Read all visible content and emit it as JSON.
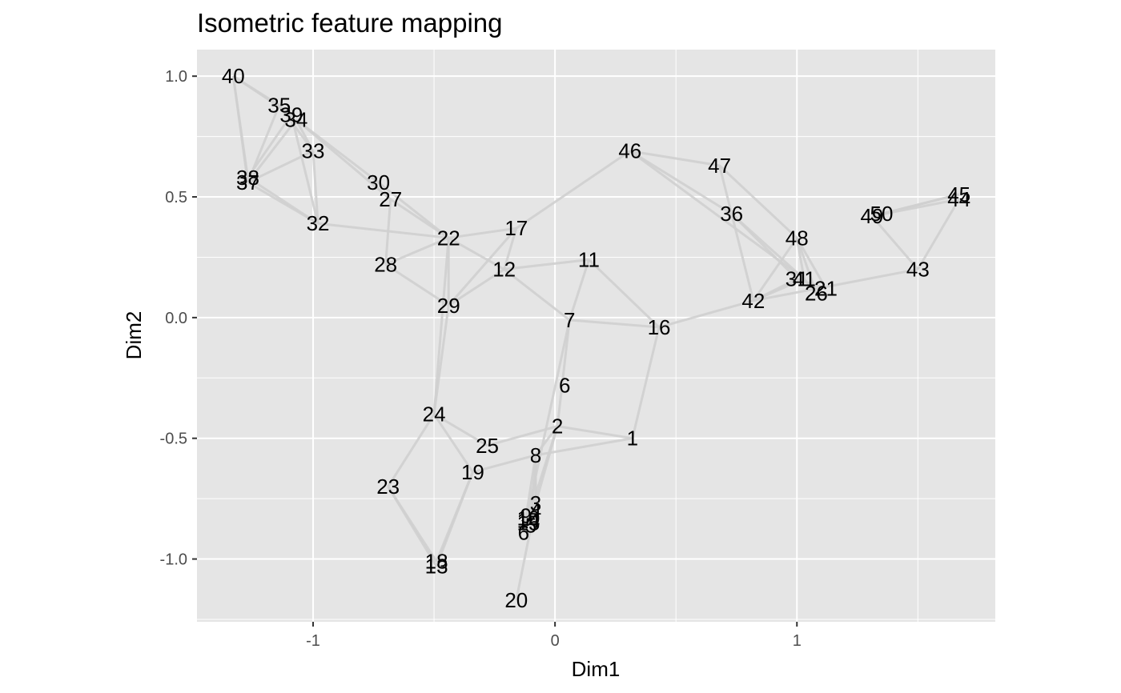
{
  "chart_data": {
    "type": "scatter",
    "title": "Isometric feature mapping",
    "xlabel": "Dim1",
    "ylabel": "Dim2",
    "xlim": [
      -1.48,
      1.82
    ],
    "ylim": [
      -1.26,
      1.11
    ],
    "x_ticks": [
      -1,
      0,
      1
    ],
    "x_tick_labels": [
      "-1",
      "0",
      "1"
    ],
    "y_ticks": [
      1.0,
      0.5,
      0.0,
      -0.5,
      -1.0
    ],
    "y_tick_labels": [
      "1.0",
      "0.5",
      "0.0",
      "-0.5",
      "-1.0"
    ],
    "grid": true,
    "background": "#e5e5e5",
    "grid_color": "#ffffff",
    "edge_color": "#cfcfcf",
    "points": [
      {
        "label": "1",
        "x": 0.32,
        "y": -0.5
      },
      {
        "label": "2",
        "x": 0.01,
        "y": -0.45
      },
      {
        "label": "3",
        "x": -0.08,
        "y": -0.77
      },
      {
        "label": "4",
        "x": -0.08,
        "y": -0.8
      },
      {
        "label": "5",
        "x": -0.1,
        "y": -0.86
      },
      {
        "label": "6",
        "x": -0.13,
        "y": -0.89
      },
      {
        "label": "6",
        "x": 0.04,
        "y": -0.28
      },
      {
        "label": "7",
        "x": 0.06,
        "y": -0.01
      },
      {
        "label": "8",
        "x": -0.08,
        "y": -0.57
      },
      {
        "label": "9",
        "x": -0.12,
        "y": -0.82
      },
      {
        "label": "10",
        "x": -0.11,
        "y": -0.83
      },
      {
        "label": "11",
        "x": 0.14,
        "y": 0.24
      },
      {
        "label": "12",
        "x": -0.21,
        "y": 0.2
      },
      {
        "label": "13",
        "x": -0.49,
        "y": -1.03
      },
      {
        "label": "14",
        "x": -0.11,
        "y": -0.84
      },
      {
        "label": "15",
        "x": -0.11,
        "y": -0.85
      },
      {
        "label": "16",
        "x": 0.43,
        "y": -0.04
      },
      {
        "label": "17",
        "x": -0.16,
        "y": 0.37
      },
      {
        "label": "18",
        "x": -0.49,
        "y": -1.01
      },
      {
        "label": "19",
        "x": -0.34,
        "y": -0.64
      },
      {
        "label": "20",
        "x": -0.16,
        "y": -1.17
      },
      {
        "label": "21",
        "x": 1.12,
        "y": 0.12
      },
      {
        "label": "22",
        "x": -0.44,
        "y": 0.33
      },
      {
        "label": "23",
        "x": -0.69,
        "y": -0.7
      },
      {
        "label": "24",
        "x": -0.5,
        "y": -0.4
      },
      {
        "label": "25",
        "x": -0.28,
        "y": -0.53
      },
      {
        "label": "26",
        "x": 1.08,
        "y": 0.1
      },
      {
        "label": "27",
        "x": -0.68,
        "y": 0.49
      },
      {
        "label": "28",
        "x": -0.7,
        "y": 0.22
      },
      {
        "label": "29",
        "x": -0.44,
        "y": 0.05
      },
      {
        "label": "30",
        "x": -0.73,
        "y": 0.56
      },
      {
        "label": "31",
        "x": 1.0,
        "y": 0.16
      },
      {
        "label": "32",
        "x": -0.98,
        "y": 0.39
      },
      {
        "label": "33",
        "x": -1.0,
        "y": 0.69
      },
      {
        "label": "34",
        "x": -1.07,
        "y": 0.82
      },
      {
        "label": "35",
        "x": -1.14,
        "y": 0.88
      },
      {
        "label": "36",
        "x": 0.73,
        "y": 0.43
      },
      {
        "label": "37",
        "x": -1.27,
        "y": 0.56
      },
      {
        "label": "38",
        "x": -1.27,
        "y": 0.58
      },
      {
        "label": "39",
        "x": -1.09,
        "y": 0.84
      },
      {
        "label": "40",
        "x": -1.33,
        "y": 1.0
      },
      {
        "label": "41",
        "x": 1.03,
        "y": 0.16
      },
      {
        "label": "42",
        "x": 0.82,
        "y": 0.07
      },
      {
        "label": "43",
        "x": 1.5,
        "y": 0.2
      },
      {
        "label": "44",
        "x": 1.67,
        "y": 0.49
      },
      {
        "label": "45",
        "x": 1.67,
        "y": 0.51
      },
      {
        "label": "46",
        "x": 0.31,
        "y": 0.69
      },
      {
        "label": "47",
        "x": 0.68,
        "y": 0.63
      },
      {
        "label": "48",
        "x": 1.0,
        "y": 0.33
      },
      {
        "label": "49",
        "x": 1.31,
        "y": 0.42
      },
      {
        "label": "50",
        "x": 1.35,
        "y": 0.43
      }
    ],
    "edges": [
      [
        "40",
        "37"
      ],
      [
        "40",
        "38"
      ],
      [
        "40",
        "35"
      ],
      [
        "40",
        "39"
      ],
      [
        "35",
        "37"
      ],
      [
        "35",
        "33"
      ],
      [
        "34",
        "37"
      ],
      [
        "39",
        "38"
      ],
      [
        "34",
        "33"
      ],
      [
        "34",
        "30"
      ],
      [
        "34",
        "27"
      ],
      [
        "39",
        "32"
      ],
      [
        "33",
        "37"
      ],
      [
        "33",
        "32"
      ],
      [
        "37",
        "32"
      ],
      [
        "38",
        "32"
      ],
      [
        "32",
        "22"
      ],
      [
        "30",
        "22"
      ],
      [
        "27",
        "22"
      ],
      [
        "27",
        "28"
      ],
      [
        "28",
        "22"
      ],
      [
        "28",
        "29"
      ],
      [
        "22",
        "17"
      ],
      [
        "22",
        "12"
      ],
      [
        "22",
        "29"
      ],
      [
        "22",
        "24"
      ],
      [
        "17",
        "12"
      ],
      [
        "17",
        "29"
      ],
      [
        "17",
        "46"
      ],
      [
        "12",
        "11"
      ],
      [
        "12",
        "7"
      ],
      [
        "12",
        "29"
      ],
      [
        "11",
        "7"
      ],
      [
        "11",
        "16"
      ],
      [
        "7",
        "16"
      ],
      [
        "7",
        "6"
      ],
      [
        "7",
        "2"
      ],
      [
        "16",
        "1"
      ],
      [
        "16",
        "42"
      ],
      [
        "6",
        "2"
      ],
      [
        "6",
        "8"
      ],
      [
        "2",
        "1"
      ],
      [
        "2",
        "25"
      ],
      [
        "2",
        "8"
      ],
      [
        "2",
        "3"
      ],
      [
        "1",
        "8"
      ],
      [
        "8",
        "19"
      ],
      [
        "8",
        "3"
      ],
      [
        "8",
        "4"
      ],
      [
        "8",
        "5"
      ],
      [
        "3",
        "20"
      ],
      [
        "3",
        "9"
      ],
      [
        "24",
        "25"
      ],
      [
        "24",
        "19"
      ],
      [
        "24",
        "23"
      ],
      [
        "24",
        "29"
      ],
      [
        "23",
        "13"
      ],
      [
        "23",
        "18"
      ],
      [
        "19",
        "13"
      ],
      [
        "19",
        "18"
      ],
      [
        "46",
        "47"
      ],
      [
        "46",
        "36"
      ],
      [
        "46",
        "41"
      ],
      [
        "47",
        "36"
      ],
      [
        "36",
        "41"
      ],
      [
        "36",
        "42"
      ],
      [
        "36",
        "31"
      ],
      [
        "47",
        "48"
      ],
      [
        "48",
        "42"
      ],
      [
        "48",
        "41"
      ],
      [
        "48",
        "26"
      ],
      [
        "48",
        "21"
      ],
      [
        "42",
        "31"
      ],
      [
        "42",
        "41"
      ],
      [
        "42",
        "43"
      ],
      [
        "43",
        "44"
      ],
      [
        "43",
        "49"
      ],
      [
        "49",
        "44"
      ],
      [
        "50",
        "45"
      ],
      [
        "49",
        "45"
      ],
      [
        "41",
        "26"
      ],
      [
        "31",
        "21"
      ]
    ]
  }
}
